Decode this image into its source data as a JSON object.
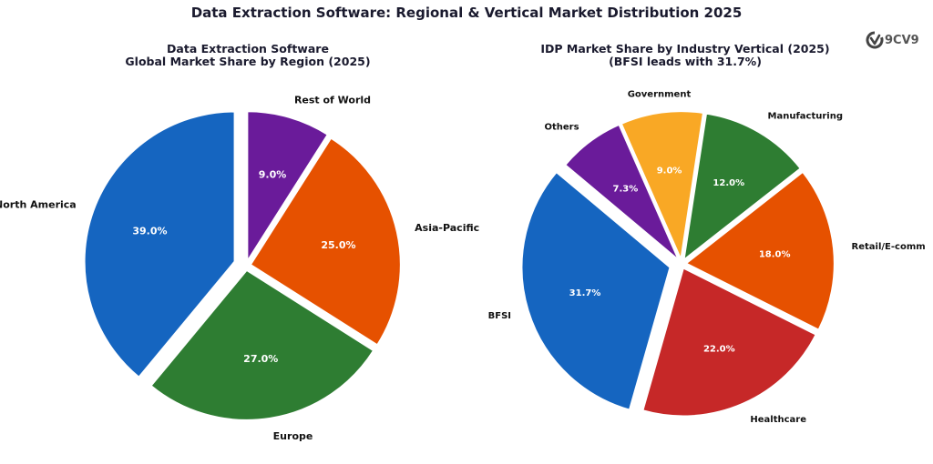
{
  "title": "Data Extraction Software: Regional & Vertical Market Distribution 2025",
  "logo_text": "9CV9",
  "chart_data": [
    {
      "type": "pie",
      "title_lines": [
        "Data Extraction Software",
        "Global Market Share by Region (2025)"
      ],
      "start_angle_deg": 90,
      "direction": "clockwise",
      "slices": [
        {
          "label": "Rest of World",
          "value": 9.0,
          "pct_label": "9.0%",
          "color": "#6a1b9a",
          "explode": 0.03
        },
        {
          "label": "Asia-Pacific",
          "value": 25.0,
          "pct_label": "25.0%",
          "color": "#e65100",
          "explode": 0.03
        },
        {
          "label": "Europe",
          "value": 27.0,
          "pct_label": "27.0%",
          "color": "#2e7d32",
          "explode": 0.03
        },
        {
          "label": "North America",
          "value": 39.0,
          "pct_label": "39.0%",
          "color": "#1565c0",
          "explode": 0.08
        }
      ]
    },
    {
      "type": "pie",
      "title_lines": [
        "IDP Market Share by Industry Vertical (2025)",
        "(BFSI leads with 31.7%)"
      ],
      "start_angle_deg": 140,
      "direction": "counterclockwise",
      "slices": [
        {
          "label": "BFSI",
          "value": 31.7,
          "pct_label": "31.7%",
          "color": "#1565c0",
          "explode": 0.08
        },
        {
          "label": "Healthcare",
          "value": 22.0,
          "pct_label": "22.0%",
          "color": "#c62828",
          "explode": 0.03
        },
        {
          "label": "Retail/E-comm",
          "value": 18.0,
          "pct_label": "18.0%",
          "color": "#e65100",
          "explode": 0.03
        },
        {
          "label": "Manufacturing",
          "value": 12.0,
          "pct_label": "12.0%",
          "color": "#2e7d32",
          "explode": 0.03
        },
        {
          "label": "Government",
          "value": 9.0,
          "pct_label": "9.0%",
          "color": "#f9a825",
          "explode": 0.03
        },
        {
          "label": "Others",
          "value": 7.3,
          "pct_label": "7.3%",
          "color": "#6a1b9a",
          "explode": 0.03
        }
      ]
    }
  ]
}
